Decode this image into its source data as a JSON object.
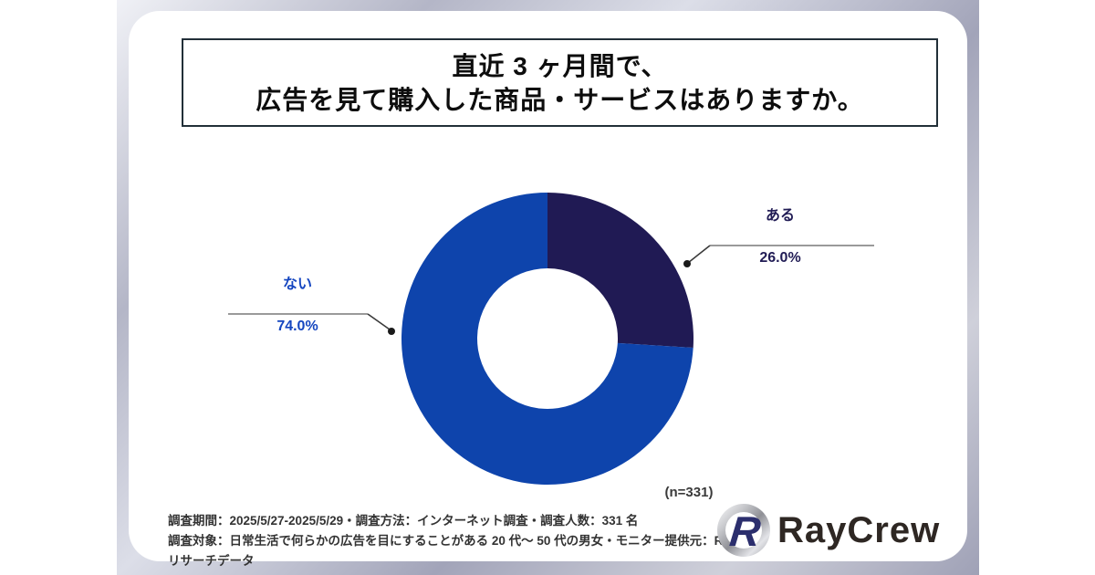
{
  "title": {
    "line1": "直近 3 ヶ月間で、",
    "line2": "広告を見て購入した商品・サービスはありますか。"
  },
  "chart_data": {
    "type": "pie",
    "donut": true,
    "title": "直近 3 ヶ月間で、広告を見て購入した商品・サービスはありますか。",
    "categories": [
      "ある",
      "ない"
    ],
    "values": [
      26.0,
      74.0
    ],
    "value_labels": [
      "26.0%",
      "74.0%"
    ],
    "ids": [
      "aru",
      "nai"
    ],
    "slice_colors": [
      "#201A54",
      "#0E44AC"
    ],
    "label_colors": [
      "#211C55",
      "#1546C0"
    ],
    "start_angle_deg": 0,
    "direction": "clockwise",
    "sample_size_label": "(n=331)",
    "sample_size": 331
  },
  "footer": {
    "line1": "調査期間：2025/5/27-2025/5/29・調査方法：インターネット調査・調査人数：331 名",
    "line2": "調査対象：日常生活で何らかの広告を目にすることがある 20 代〜 50 代の男女・モニター提供元：RC リサーチデータ"
  },
  "logo": {
    "text": "RayCrew",
    "mark": "R"
  },
  "colors": {
    "frame_light": "#f0f1f6",
    "frame_dark": "#9fa1b6",
    "title_border": "#222f38",
    "footer_text": "#333333",
    "note_text": "#3a3a3a",
    "logo_text": "#2e2723",
    "logo_mark_navy": "#2b2e6d",
    "leader_line": "#9a9a9a",
    "leader_diag": "#3a3a3a",
    "leader_dot": "#1a1a1a"
  }
}
